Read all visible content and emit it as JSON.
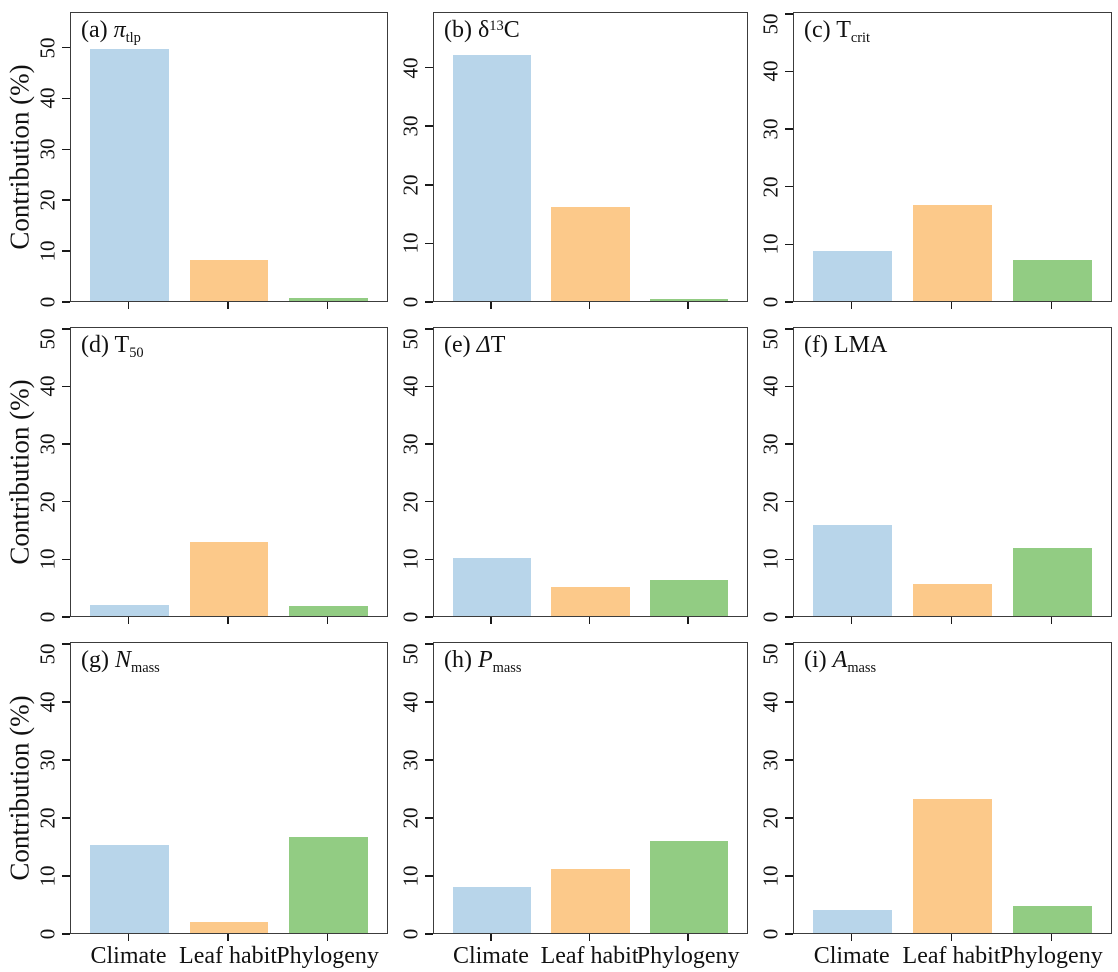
{
  "figure": {
    "ylabel": "Contribution (%)",
    "categories": [
      "Climate",
      "Leaf habit",
      "Phylogeny"
    ],
    "bar_colors": [
      "#b8d5ea",
      "#fcc98a",
      "#92cc83"
    ],
    "axis_color": "#3c3c3c",
    "text_color": "#111111",
    "background_color": "#ffffff"
  },
  "chart_data": [
    {
      "id": "a",
      "type": "bar",
      "title": "(a) π_tlp",
      "title_segments": [
        {
          "text": "(a) "
        },
        {
          "text": "π",
          "style": "italic"
        },
        {
          "text": "tlp",
          "style": "sub"
        }
      ],
      "categories": [
        "Climate",
        "Leaf habit",
        "Phylogeny"
      ],
      "values": [
        49.5,
        8.0,
        0.5
      ],
      "ylim": [
        0,
        57
      ],
      "yticks": [
        0,
        10,
        20,
        30,
        40,
        50
      ],
      "ylabel": "Contribution (%)",
      "grid": false,
      "legend": "none"
    },
    {
      "id": "b",
      "type": "bar",
      "title": "(b) δ^13C",
      "title_segments": [
        {
          "text": "(b) δ"
        },
        {
          "text": "13",
          "style": "sup"
        },
        {
          "text": "C"
        }
      ],
      "categories": [
        "Climate",
        "Leaf habit",
        "Phylogeny"
      ],
      "values": [
        42.0,
        16.0,
        0.3
      ],
      "ylim": [
        0,
        49.5
      ],
      "yticks": [
        0,
        10,
        20,
        30,
        40
      ],
      "ylabel": "",
      "grid": false,
      "legend": "none"
    },
    {
      "id": "c",
      "type": "bar",
      "title": "(c) T_crit",
      "title_segments": [
        {
          "text": "(c) T"
        },
        {
          "text": "crit",
          "style": "sub"
        }
      ],
      "categories": [
        "Climate",
        "Leaf habit",
        "Phylogeny"
      ],
      "values": [
        8.6,
        16.6,
        7.2
      ],
      "ylim": [
        0,
        50.3
      ],
      "yticks": [
        0,
        10,
        20,
        30,
        40,
        50
      ],
      "ylabel": "",
      "grid": false,
      "legend": "none"
    },
    {
      "id": "d",
      "type": "bar",
      "title": "(d) T_50",
      "title_segments": [
        {
          "text": "(d) T"
        },
        {
          "text": "50",
          "style": "sub"
        }
      ],
      "categories": [
        "Climate",
        "Leaf habit",
        "Phylogeny"
      ],
      "values": [
        1.9,
        12.8,
        1.7
      ],
      "ylim": [
        0,
        50.3
      ],
      "yticks": [
        0,
        10,
        20,
        30,
        40,
        50
      ],
      "ylabel": "Contribution (%)",
      "grid": false,
      "legend": "none"
    },
    {
      "id": "e",
      "type": "bar",
      "title": "(e) ΔT",
      "title_segments": [
        {
          "text": "(e) "
        },
        {
          "text": "Δ",
          "style": "italic"
        },
        {
          "text": "T"
        }
      ],
      "categories": [
        "Climate",
        "Leaf habit",
        "Phylogeny"
      ],
      "values": [
        10.0,
        5.0,
        6.2
      ],
      "ylim": [
        0,
        50.3
      ],
      "yticks": [
        0,
        10,
        20,
        30,
        40,
        50
      ],
      "ylabel": "",
      "grid": false,
      "legend": "none"
    },
    {
      "id": "f",
      "type": "bar",
      "title": "(f) LMA",
      "title_segments": [
        {
          "text": "(f) LMA"
        }
      ],
      "categories": [
        "Climate",
        "Leaf habit",
        "Phylogeny"
      ],
      "values": [
        15.8,
        5.5,
        11.8
      ],
      "ylim": [
        0,
        50.3
      ],
      "yticks": [
        0,
        10,
        20,
        30,
        40,
        50
      ],
      "ylabel": "",
      "grid": false,
      "legend": "none"
    },
    {
      "id": "g",
      "type": "bar",
      "title": "(g) N_mass",
      "title_segments": [
        {
          "text": "(g) "
        },
        {
          "text": "N",
          "style": "italic"
        },
        {
          "text": "mass",
          "style": "sub"
        }
      ],
      "categories": [
        "Climate",
        "Leaf habit",
        "Phylogeny"
      ],
      "values": [
        15.2,
        1.9,
        16.6
      ],
      "ylim": [
        0,
        50.3
      ],
      "yticks": [
        0,
        10,
        20,
        30,
        40,
        50
      ],
      "ylabel": "Contribution (%)",
      "grid": false,
      "legend": "none"
    },
    {
      "id": "h",
      "type": "bar",
      "title": "(h) P_mass",
      "title_segments": [
        {
          "text": "(h) "
        },
        {
          "text": "P",
          "style": "italic"
        },
        {
          "text": "mass",
          "style": "sub"
        }
      ],
      "categories": [
        "Climate",
        "Leaf habit",
        "Phylogeny"
      ],
      "values": [
        7.9,
        11.0,
        15.9
      ],
      "ylim": [
        0,
        50.3
      ],
      "yticks": [
        0,
        10,
        20,
        30,
        40,
        50
      ],
      "ylabel": "",
      "grid": false,
      "legend": "none"
    },
    {
      "id": "i",
      "type": "bar",
      "title": "(i) A_mass",
      "title_segments": [
        {
          "text": "(i) "
        },
        {
          "text": "A",
          "style": "italic"
        },
        {
          "text": "mass",
          "style": "sub"
        }
      ],
      "categories": [
        "Climate",
        "Leaf habit",
        "Phylogeny"
      ],
      "values": [
        3.9,
        23.1,
        4.7
      ],
      "ylim": [
        0,
        50.3
      ],
      "yticks": [
        0,
        10,
        20,
        30,
        40,
        50
      ],
      "ylabel": "",
      "grid": false,
      "legend": "none"
    }
  ]
}
